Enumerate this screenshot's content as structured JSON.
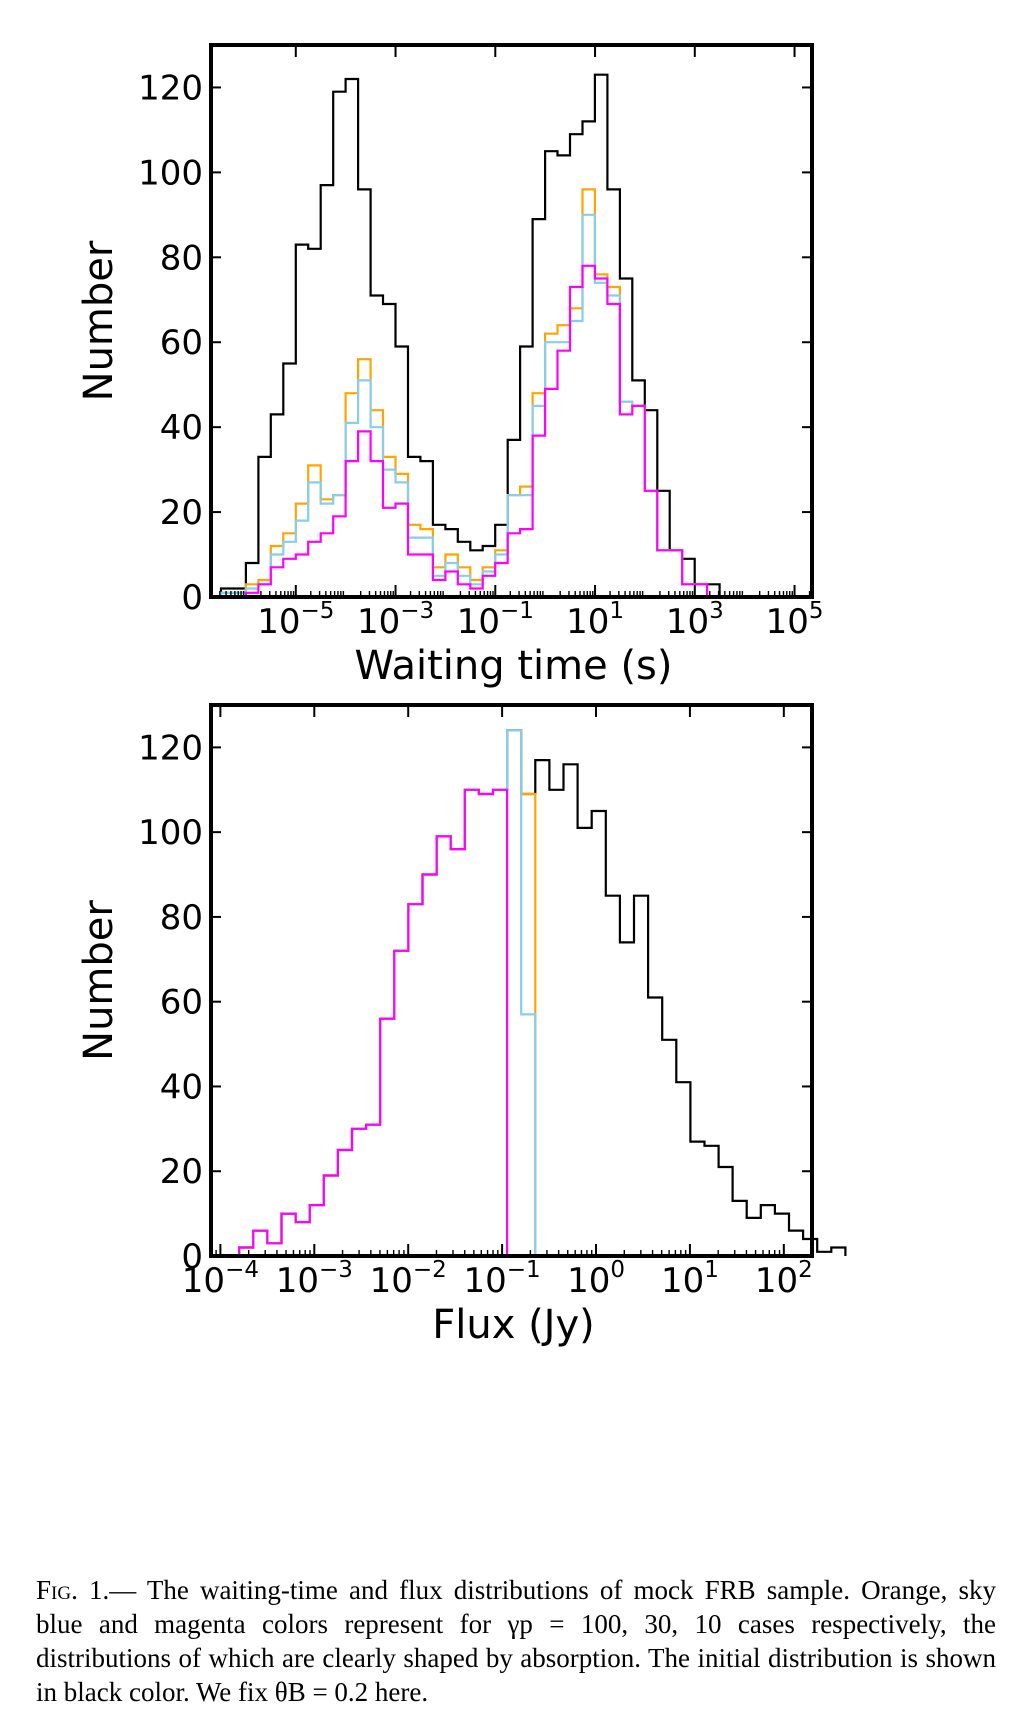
{
  "chart_data": [
    {
      "type": "histogram",
      "xlabel": "Waiting time (s)",
      "ylabel": "Number",
      "x_scale": "log",
      "ylim": [
        0,
        130
      ],
      "y_ticks": [
        0,
        20,
        40,
        60,
        80,
        100,
        120
      ],
      "x_ticks": [
        {
          "base": "10",
          "exp": "−5"
        },
        {
          "base": "10",
          "exp": "−3"
        },
        {
          "base": "10",
          "exp": "−1"
        },
        {
          "base": "10",
          "exp": "1"
        },
        {
          "base": "10",
          "exp": "3"
        },
        {
          "base": "10",
          "exp": "5"
        }
      ],
      "grid": false,
      "series": [
        {
          "color": "#000000",
          "edges_start": 3.162e-07,
          "bin_factor": 1.778,
          "values": [
            2,
            2,
            8,
            33,
            43,
            55,
            83,
            82,
            97,
            119,
            122,
            96,
            71,
            69,
            59,
            33,
            32,
            17,
            16,
            13,
            11,
            12,
            17,
            37,
            59,
            89,
            105,
            104,
            109,
            112,
            123,
            96,
            75,
            51,
            44,
            25,
            11,
            9,
            3,
            3
          ]
        },
        {
          "color": "#FFA500",
          "edges_start": 3.162e-07,
          "bin_factor": 1.778,
          "values": [
            1,
            1,
            3,
            4,
            12,
            15,
            22,
            31,
            23,
            24,
            48,
            56,
            44,
            33,
            29,
            17,
            16,
            7,
            10,
            7,
            4,
            7,
            11,
            24,
            26,
            48,
            62,
            64,
            68,
            96,
            76,
            73,
            46,
            45,
            25,
            11,
            11,
            3,
            3,
            0
          ]
        },
        {
          "color": "#87CEEB",
          "edges_start": 3.162e-07,
          "bin_factor": 1.778,
          "values": [
            1,
            1,
            2,
            3,
            10,
            13,
            18,
            27,
            22,
            24,
            41,
            51,
            40,
            30,
            27,
            14,
            14,
            5,
            8,
            5,
            3,
            6,
            10,
            24,
            24,
            45,
            60,
            60,
            65,
            90,
            74,
            71,
            46,
            45,
            25,
            11,
            11,
            3,
            3,
            0
          ]
        },
        {
          "color": "#FF00FF",
          "edges_start": 3.162e-07,
          "bin_factor": 1.778,
          "values": [
            0,
            0,
            1,
            3,
            7,
            9,
            10,
            13,
            15,
            19,
            32,
            39,
            32,
            21,
            22,
            10,
            10,
            4,
            6,
            3,
            2,
            5,
            8,
            15,
            16,
            38,
            49,
            58,
            73,
            78,
            75,
            69,
            43,
            45,
            25,
            11,
            11,
            3,
            3,
            0
          ]
        }
      ]
    },
    {
      "type": "histogram",
      "xlabel": "Flux (Jy)",
      "ylabel": "Number",
      "x_scale": "log",
      "ylim": [
        0,
        130
      ],
      "y_ticks": [
        0,
        20,
        40,
        60,
        80,
        100,
        120
      ],
      "x_ticks": [
        {
          "base": "10",
          "exp": "−4"
        },
        {
          "base": "10",
          "exp": "−3"
        },
        {
          "base": "10",
          "exp": "−2"
        },
        {
          "base": "10",
          "exp": "−1"
        },
        {
          "base": "10",
          "exp": "0"
        },
        {
          "base": "10",
          "exp": "1"
        },
        {
          "base": "10",
          "exp": "2"
        }
      ],
      "grid": false,
      "series": [
        {
          "color": "#000000",
          "edges_start": 0.0001585,
          "bin_factor": 1.413,
          "values": [
            2,
            6,
            3,
            10,
            8,
            12,
            19,
            25,
            30,
            31,
            56,
            72,
            83,
            90,
            99,
            96,
            110,
            109,
            110,
            124,
            109,
            117,
            110,
            116,
            101,
            105,
            85,
            74,
            85,
            61,
            51,
            41,
            27,
            26,
            21,
            13,
            9,
            12,
            10,
            6,
            4,
            1,
            2
          ]
        },
        {
          "color": "#FFA500",
          "edges_start": 0.0001585,
          "bin_factor": 1.413,
          "values": [
            2,
            6,
            3,
            10,
            8,
            12,
            19,
            25,
            30,
            31,
            56,
            72,
            83,
            90,
            99,
            96,
            110,
            109,
            110,
            124,
            109,
            0
          ]
        },
        {
          "color": "#87CEEB",
          "edges_start": 0.0001585,
          "bin_factor": 1.413,
          "values": [
            2,
            6,
            3,
            10,
            8,
            12,
            19,
            25,
            30,
            31,
            56,
            72,
            83,
            90,
            99,
            96,
            110,
            109,
            110,
            124,
            57,
            0
          ]
        },
        {
          "color": "#FF00FF",
          "edges_start": 0.0001585,
          "bin_factor": 1.413,
          "values": [
            2,
            6,
            3,
            10,
            8,
            12,
            19,
            25,
            30,
            31,
            56,
            72,
            83,
            90,
            99,
            96,
            110,
            109,
            110,
            0
          ]
        }
      ]
    }
  ],
  "caption": {
    "fig_label": "Fig. 1.",
    "text": "— The waiting-time and flux distributions of mock FRB sample. Orange, sky blue and magenta colors represent for γp = 100, 30, 10 cases respectively, the distributions of which are clearly shaped by absorption. The initial distribution is shown in black color. We fix θB = 0.2 here."
  }
}
